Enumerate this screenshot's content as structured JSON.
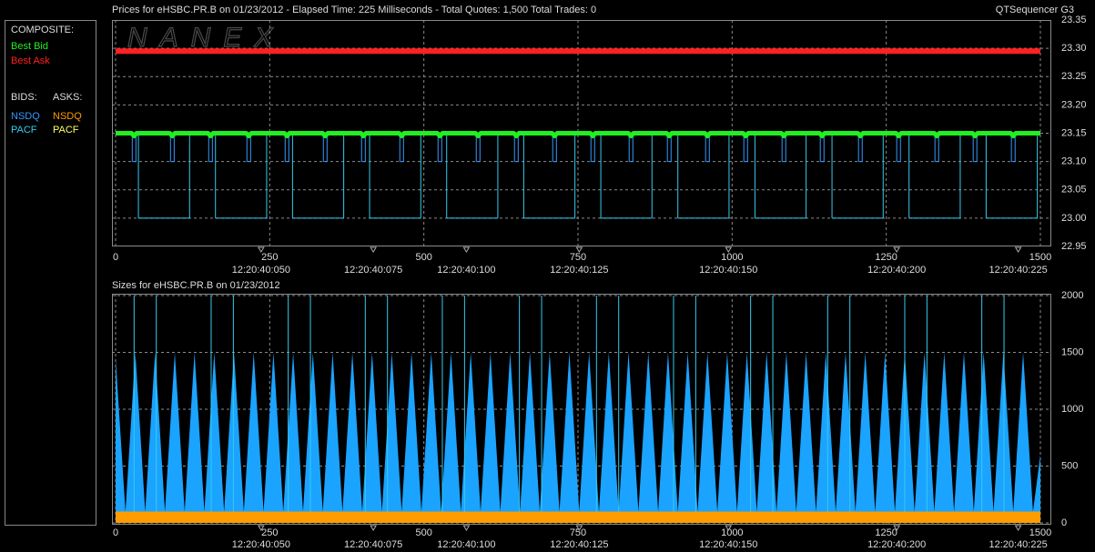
{
  "watermark": "NANEX",
  "legend": {
    "composite": "COMPOSITE:",
    "bids": "BIDS:",
    "asks": "ASKS:",
    "asks_entries": [
      {
        "name": "NSDQ",
        "color": "#ff9c00"
      },
      {
        "name": "PACF",
        "color": "#ffff60"
      }
    ]
  },
  "chart_data": [
    {
      "type": "line",
      "title": "Prices for  eHSBC.PR.B  on  01/23/2012  -  Elapsed Time: 225 Milliseconds  -  Total Quotes: 1,500  Total Trades: 0",
      "subtitle": "QTSequencer G3",
      "xlim": [
        0,
        1500
      ],
      "xticks": [
        0,
        250,
        500,
        750,
        1000,
        1250,
        1500
      ],
      "ylim": [
        22.95,
        23.35
      ],
      "yticks": [
        22.95,
        {
          "value": 23,
          "label": "23.00"
        },
        23.05,
        {
          "value": 23.1,
          "label": "23.10"
        },
        23.15,
        {
          "value": 23.2,
          "label": "23.20"
        },
        23.25,
        {
          "value": 23.3,
          "label": "23.30"
        },
        23.35
      ],
      "grid": true,
      "time_labels": [
        {
          "value": 236,
          "label": "12:20:40:050"
        },
        {
          "value": 418,
          "label": "12:20:40:075"
        },
        {
          "value": 569,
          "label": "12:20:40:100"
        },
        {
          "value": 752,
          "label": "12:20:40:125"
        },
        {
          "value": 994,
          "label": "12:20:40:150"
        },
        {
          "value": 1267,
          "label": "12:20:40:200"
        },
        {
          "value": 1464,
          "label": "12:20:40:225"
        }
      ],
      "series": [
        {
          "name": "Best Bid",
          "color": "#22ee22",
          "style": "line",
          "line_width": 5,
          "x": [
            0,
            26,
            30,
            34,
            88,
            92,
            96,
            150,
            154,
            158,
            212,
            216,
            220,
            274,
            278,
            282,
            336,
            340,
            344,
            398,
            402,
            406,
            460,
            464,
            468,
            522,
            526,
            530,
            584,
            588,
            592,
            646,
            650,
            654,
            708,
            712,
            716,
            770,
            774,
            778,
            832,
            836,
            840,
            894,
            898,
            902,
            956,
            960,
            964,
            1018,
            1022,
            1026,
            1080,
            1084,
            1088,
            1142,
            1146,
            1150,
            1204,
            1208,
            1212,
            1266,
            1270,
            1274,
            1328,
            1332,
            1336,
            1390,
            1394,
            1398,
            1452,
            1456,
            1460,
            1500
          ],
          "values": [
            23.15,
            23.15,
            23.145,
            23.15,
            23.15,
            23.145,
            23.15,
            23.15,
            23.145,
            23.15,
            23.15,
            23.145,
            23.15,
            23.15,
            23.145,
            23.15,
            23.15,
            23.145,
            23.15,
            23.15,
            23.145,
            23.15,
            23.15,
            23.145,
            23.15,
            23.15,
            23.145,
            23.15,
            23.15,
            23.145,
            23.15,
            23.15,
            23.145,
            23.15,
            23.15,
            23.145,
            23.15,
            23.15,
            23.145,
            23.15,
            23.15,
            23.145,
            23.15,
            23.15,
            23.145,
            23.15,
            23.15,
            23.145,
            23.15,
            23.15,
            23.145,
            23.15,
            23.15,
            23.145,
            23.15,
            23.15,
            23.145,
            23.15,
            23.15,
            23.145,
            23.15,
            23.15,
            23.145,
            23.15,
            23.15,
            23.145,
            23.15,
            23.15,
            23.145,
            23.15,
            23.15,
            23.145,
            23.15,
            23.15
          ]
        },
        {
          "name": "Best Ask",
          "color": "#ff2020",
          "style": "line",
          "line_width": 6,
          "x": [
            0,
            1500
          ],
          "values": [
            23.295,
            23.295
          ]
        },
        {
          "name": "NSDQ",
          "color": "#3399ff",
          "style": "step",
          "line_width": 1,
          "x": [
            0,
            27,
            33,
            89,
            95,
            151,
            157,
            213,
            219,
            275,
            281,
            337,
            343,
            399,
            405,
            461,
            467,
            523,
            529,
            585,
            591,
            647,
            653,
            709,
            715,
            771,
            777,
            833,
            839,
            895,
            901,
            957,
            963,
            1019,
            1025,
            1081,
            1087,
            1143,
            1149,
            1205,
            1211,
            1267,
            1273,
            1329,
            1335,
            1391,
            1397,
            1453,
            1459
          ],
          "values": [
            23.15,
            23.1,
            23.15,
            23.1,
            23.15,
            23.1,
            23.15,
            23.1,
            23.15,
            23.1,
            23.15,
            23.1,
            23.15,
            23.1,
            23.15,
            23.1,
            23.15,
            23.1,
            23.15,
            23.1,
            23.15,
            23.1,
            23.15,
            23.1,
            23.15,
            23.1,
            23.15,
            23.1,
            23.15,
            23.1,
            23.15,
            23.1,
            23.15,
            23.1,
            23.15,
            23.1,
            23.15,
            23.1,
            23.15,
            23.1,
            23.15,
            23.1,
            23.15,
            23.1,
            23.15,
            23.1,
            23.15,
            23.1,
            23.15
          ]
        },
        {
          "name": "PACF",
          "color": "#33ccee",
          "style": "step",
          "line_width": 1,
          "x": [
            0,
            37,
            120,
            162,
            245,
            287,
            370,
            412,
            495,
            537,
            620,
            662,
            745,
            787,
            870,
            912,
            995,
            1037,
            1120,
            1162,
            1245,
            1287,
            1370,
            1412,
            1495
          ],
          "values": [
            23.15,
            23,
            23.15,
            23,
            23.15,
            23,
            23.15,
            23,
            23.15,
            23,
            23.15,
            23,
            23.15,
            23,
            23.15,
            23,
            23.15,
            23,
            23.15,
            23,
            23.15,
            23,
            23.15,
            23,
            23.15
          ]
        }
      ]
    },
    {
      "type": "area",
      "title": "Sizes for  eHSBC.PR.B  on  01/23/2012",
      "xlim": [
        0,
        1500
      ],
      "xticks": [
        0,
        250,
        500,
        750,
        1000,
        1250,
        1500
      ],
      "ylim": [
        0,
        2000
      ],
      "yticks": [
        0,
        500,
        1000,
        1500,
        2000
      ],
      "grid": true,
      "time_labels": [
        {
          "value": 236,
          "label": "12:20:40:050"
        },
        {
          "value": 418,
          "label": "12:20:40:075"
        },
        {
          "value": 569,
          "label": "12:20:40:100"
        },
        {
          "value": 752,
          "label": "12:20:40:125"
        },
        {
          "value": 994,
          "label": "12:20:40:150"
        },
        {
          "value": 1267,
          "label": "12:20:40:200"
        },
        {
          "value": 1464,
          "label": "12:20:40:225"
        }
      ],
      "series": [
        {
          "name": "NSDQ",
          "color": "#1aa3ff",
          "style": "area",
          "x": [
            0,
            16,
            32,
            48,
            64,
            80,
            96,
            112,
            128,
            144,
            160,
            176,
            192,
            208,
            224,
            240,
            256,
            272,
            288,
            304,
            320,
            336,
            352,
            368,
            384,
            400,
            416,
            432,
            448,
            464,
            480,
            496,
            512,
            528,
            544,
            560,
            576,
            592,
            608,
            624,
            640,
            656,
            672,
            688,
            704,
            720,
            736,
            752,
            768,
            784,
            800,
            816,
            832,
            848,
            864,
            880,
            896,
            912,
            928,
            944,
            960,
            976,
            992,
            1008,
            1024,
            1040,
            1056,
            1072,
            1088,
            1104,
            1120,
            1136,
            1152,
            1168,
            1184,
            1200,
            1216,
            1232,
            1248,
            1264,
            1280,
            1296,
            1312,
            1328,
            1344,
            1360,
            1376,
            1392,
            1408,
            1424,
            1440,
            1456,
            1472,
            1488,
            1500
          ],
          "values": [
            1450,
            100,
            1500,
            100,
            1500,
            100,
            1500,
            100,
            1500,
            100,
            1500,
            100,
            1500,
            100,
            1500,
            100,
            1500,
            100,
            1500,
            100,
            1500,
            100,
            1500,
            100,
            1500,
            100,
            1500,
            100,
            1500,
            100,
            1500,
            100,
            1500,
            100,
            1500,
            100,
            1500,
            100,
            1500,
            100,
            1500,
            100,
            1500,
            100,
            1500,
            100,
            1500,
            100,
            1500,
            100,
            1500,
            100,
            1500,
            100,
            1500,
            100,
            1500,
            100,
            1500,
            100,
            1500,
            100,
            1500,
            100,
            1500,
            100,
            1500,
            100,
            1500,
            100,
            1500,
            100,
            1500,
            100,
            1500,
            100,
            1500,
            100,
            1500,
            100,
            1500,
            100,
            1500,
            100,
            1500,
            100,
            1500,
            100,
            1500,
            100,
            1500,
            100,
            1500,
            100,
            600
          ]
        },
        {
          "name": "PACF",
          "color": "#33ccee",
          "style": "stem",
          "x": [
            30,
            66,
            155,
            191,
            280,
            316,
            405,
            441,
            530,
            566,
            655,
            691,
            780,
            816,
            905,
            941,
            1030,
            1066,
            1155,
            1191,
            1280,
            1316,
            1405,
            1441
          ],
          "values": [
            2000,
            2000,
            2000,
            2000,
            2000,
            2000,
            2000,
            2000,
            2000,
            2000,
            2000,
            2000,
            2000,
            2000,
            2000,
            2000,
            2000,
            2000,
            2000,
            2000,
            2000,
            2000,
            2000,
            2000
          ]
        },
        {
          "name": "NSDQ",
          "color": "#ff9c00",
          "style": "area",
          "x": [
            0,
            1500
          ],
          "values": [
            100,
            100
          ]
        }
      ]
    }
  ]
}
